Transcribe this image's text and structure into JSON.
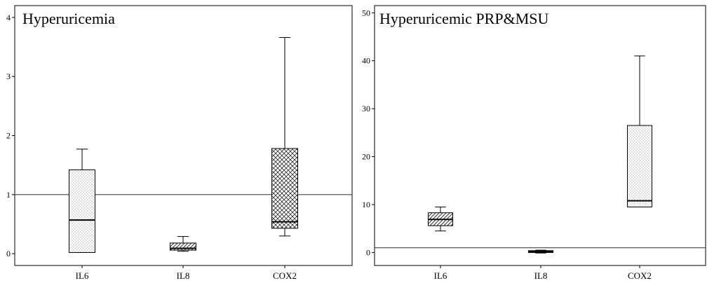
{
  "chart_data": [
    {
      "type": "box",
      "title": "Hyperuricemia",
      "categories": [
        "IL6",
        "IL8",
        "COX2"
      ],
      "yticks": [
        "0",
        "1",
        "2",
        "3",
        "4"
      ],
      "ylim": [
        -0.2,
        4.2
      ],
      "reference_line": 1,
      "grid": false,
      "boxes": [
        {
          "category": "IL6",
          "min": 0.02,
          "q1": 0.02,
          "median": 0.57,
          "q3": 1.42,
          "max": 1.77,
          "pattern": "dots"
        },
        {
          "category": "IL8",
          "min": 0.04,
          "q1": 0.06,
          "median": 0.09,
          "q3": 0.18,
          "max": 0.29,
          "pattern": "diagonal"
        },
        {
          "category": "COX2",
          "min": 0.3,
          "q1": 0.43,
          "median": 0.54,
          "q3": 1.78,
          "max": 3.66,
          "pattern": "crosshatch"
        }
      ]
    },
    {
      "type": "box",
      "title": "Hyperuricemic PRP&MSU",
      "categories": [
        "IL6",
        "IL8",
        "COX2"
      ],
      "yticks": [
        "0",
        "10",
        "20",
        "30",
        "40",
        "50"
      ],
      "ylim": [
        -2.7,
        51.5
      ],
      "reference_line": 1,
      "grid": false,
      "boxes": [
        {
          "category": "IL6",
          "min": 4.5,
          "q1": 5.6,
          "median": 6.9,
          "q3": 8.3,
          "max": 9.5,
          "pattern": "diagonal"
        },
        {
          "category": "IL8",
          "min": -0.1,
          "q1": 0.0,
          "median": 0.2,
          "q3": 0.4,
          "max": 0.5,
          "pattern": "plain"
        },
        {
          "category": "COX2",
          "min": 9.5,
          "q1": 9.5,
          "median": 10.8,
          "q3": 26.5,
          "max": 41.0,
          "pattern": "dots"
        }
      ]
    }
  ]
}
